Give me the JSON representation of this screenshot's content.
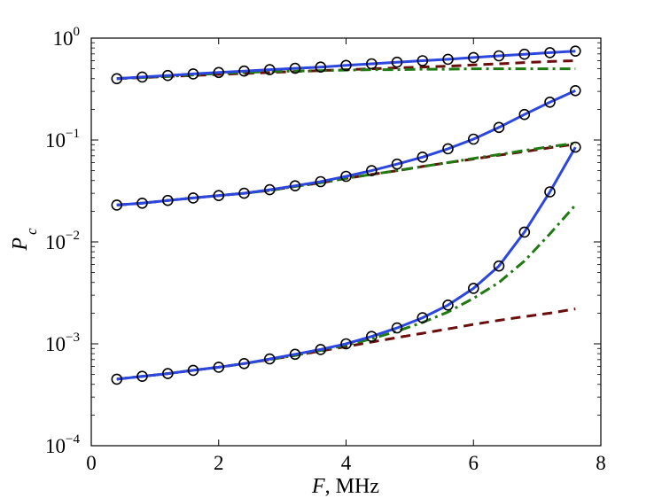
{
  "chart_data": {
    "type": "line",
    "title": "",
    "xlabel": {
      "var": "F",
      "unit": ", MHz"
    },
    "ylabel": {
      "var": "P",
      "sub": "c"
    },
    "xlim": [
      0,
      8
    ],
    "ylim": [
      0.0001,
      1
    ],
    "yscale": "log",
    "xticks": [
      0,
      2,
      4,
      6,
      8
    ],
    "xtick_labels": [
      "0",
      "2",
      "4",
      "6",
      "8"
    ],
    "yticks": [
      0.0001,
      0.001,
      0.01,
      0.1,
      1
    ],
    "ytick_labels": [
      {
        "base": "10",
        "exp": "−4"
      },
      {
        "base": "10",
        "exp": "−3"
      },
      {
        "base": "10",
        "exp": "−2"
      },
      {
        "base": "10",
        "exp": "−1"
      },
      {
        "base": "10",
        "exp": "0"
      }
    ],
    "grid": false,
    "x": [
      0.4,
      0.8,
      1.2,
      1.6,
      2.0,
      2.4,
      2.8,
      3.2,
      3.6,
      4.0,
      4.4,
      4.8,
      5.2,
      5.6,
      6.0,
      6.4,
      6.8,
      7.2,
      7.6
    ],
    "groups": [
      {
        "name": "upper",
        "markers": [
          0.4,
          0.415,
          0.43,
          0.445,
          0.46,
          0.475,
          0.49,
          0.505,
          0.52,
          0.54,
          0.56,
          0.58,
          0.6,
          0.62,
          0.645,
          0.67,
          0.695,
          0.72,
          0.745
        ],
        "solid": [
          0.4,
          0.415,
          0.43,
          0.445,
          0.46,
          0.475,
          0.49,
          0.505,
          0.52,
          0.54,
          0.56,
          0.58,
          0.6,
          0.62,
          0.645,
          0.67,
          0.695,
          0.72,
          0.745
        ],
        "dashed": [
          0.4,
          0.41,
          0.42,
          0.43,
          0.44,
          0.45,
          0.46,
          0.47,
          0.48,
          0.49,
          0.5,
          0.51,
          0.52,
          0.53,
          0.545,
          0.56,
          0.575,
          0.59,
          0.6
        ],
        "dashdot": [
          0.4,
          0.41,
          0.42,
          0.435,
          0.45,
          0.46,
          0.47,
          0.475,
          0.48,
          0.485,
          0.49,
          0.49,
          0.495,
          0.495,
          0.5,
          0.5,
          0.5,
          0.5,
          0.5
        ]
      },
      {
        "name": "middle",
        "markers": [
          0.023,
          0.024,
          0.0255,
          0.027,
          0.0285,
          0.03,
          0.0325,
          0.0355,
          0.039,
          0.044,
          0.05,
          0.058,
          0.068,
          0.082,
          0.102,
          0.133,
          0.178,
          0.235,
          0.305
        ],
        "solid": [
          0.023,
          0.024,
          0.0255,
          0.027,
          0.0285,
          0.03,
          0.0325,
          0.0355,
          0.039,
          0.044,
          0.05,
          0.058,
          0.068,
          0.082,
          0.102,
          0.133,
          0.178,
          0.235,
          0.305
        ],
        "dashed": [
          0.023,
          0.024,
          0.0255,
          0.027,
          0.0285,
          0.03,
          0.032,
          0.035,
          0.038,
          0.042,
          0.046,
          0.05,
          0.055,
          0.06,
          0.065,
          0.071,
          0.077,
          0.084,
          0.091
        ],
        "dashdot": [
          0.023,
          0.024,
          0.0255,
          0.027,
          0.0285,
          0.03,
          0.032,
          0.035,
          0.038,
          0.042,
          0.046,
          0.05,
          0.055,
          0.06,
          0.066,
          0.072,
          0.079,
          0.086,
          0.093
        ]
      },
      {
        "name": "lower",
        "markers": [
          0.00045,
          0.00048,
          0.00051,
          0.00055,
          0.00059,
          0.00064,
          0.00071,
          0.00079,
          0.00088,
          0.001,
          0.00118,
          0.00143,
          0.0018,
          0.0024,
          0.0035,
          0.0058,
          0.0125,
          0.031,
          0.085
        ],
        "solid": [
          0.00045,
          0.00048,
          0.00051,
          0.00055,
          0.00059,
          0.00064,
          0.00071,
          0.00079,
          0.00088,
          0.001,
          0.00118,
          0.00143,
          0.0018,
          0.0024,
          0.0035,
          0.0058,
          0.0125,
          0.031,
          0.085
        ],
        "dashed": [
          0.00045,
          0.00048,
          0.00051,
          0.00055,
          0.00059,
          0.00064,
          0.0007,
          0.00077,
          0.00085,
          0.00094,
          0.00104,
          0.00115,
          0.00127,
          0.0014,
          0.00155,
          0.0017,
          0.00185,
          0.002,
          0.0022
        ],
        "dashdot": [
          0.00045,
          0.00048,
          0.00051,
          0.00055,
          0.00059,
          0.00064,
          0.0007,
          0.00077,
          0.00086,
          0.00097,
          0.00112,
          0.00133,
          0.00162,
          0.00205,
          0.0028,
          0.004,
          0.0065,
          0.012,
          0.023
        ]
      }
    ],
    "styles": {
      "solid": {
        "color": "#2b47e0"
      },
      "dashed": {
        "color": "#6b0d0d"
      },
      "dashdot": {
        "color": "#1f7a12"
      },
      "marker": {
        "color": "#000000"
      }
    }
  }
}
